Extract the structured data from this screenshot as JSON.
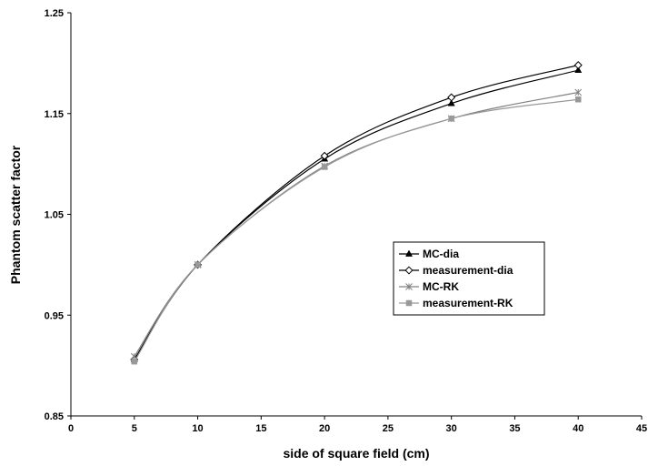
{
  "chart_data": {
    "type": "line",
    "xlabel": "side of square field (cm)",
    "ylabel": "Phantom scatter factor",
    "xlim": [
      0,
      45
    ],
    "ylim": [
      0.85,
      1.25
    ],
    "xticks": [
      "0",
      "5",
      "10",
      "15",
      "20",
      "25",
      "30",
      "35",
      "40",
      "45"
    ],
    "yticks": [
      "0.85",
      "0.95",
      "1.05",
      "1.15",
      "1.25"
    ],
    "grid": false,
    "legend_position": "center-right",
    "smooth": true,
    "series": [
      {
        "name": "MC-dia",
        "marker": "triangle",
        "color": "#000000",
        "x": [
          5,
          10,
          20,
          30,
          40
        ],
        "y": [
          0.906,
          1.0,
          1.105,
          1.16,
          1.193
        ]
      },
      {
        "name": "measurement-dia",
        "marker": "diamond-open",
        "color": "#000000",
        "x": [
          5,
          10,
          20,
          30,
          40
        ],
        "y": [
          0.906,
          1.0,
          1.108,
          1.166,
          1.198
        ]
      },
      {
        "name": "MC-RK",
        "marker": "star",
        "color": "#808080",
        "x": [
          5,
          10,
          20,
          30,
          40
        ],
        "y": [
          0.909,
          1.0,
          1.098,
          1.145,
          1.171
        ]
      },
      {
        "name": "measurement-RK",
        "marker": "square",
        "color": "#999999",
        "x": [
          5,
          10,
          20,
          30,
          40
        ],
        "y": [
          0.904,
          1.0,
          1.097,
          1.145,
          1.164
        ]
      }
    ]
  }
}
